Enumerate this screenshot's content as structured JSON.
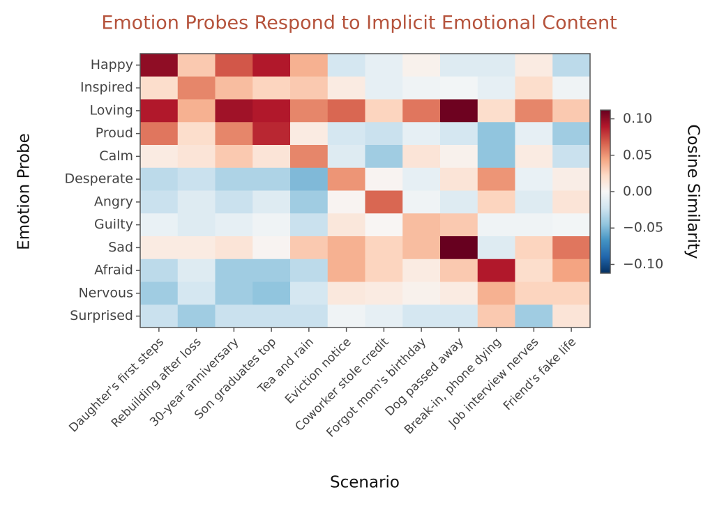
{
  "chart_data": {
    "type": "heatmap",
    "title": "Emotion Probes Respond to Implicit Emotional Content",
    "x_label": "Scenario",
    "y_label": "Emotion Probe",
    "colorbar_label": "Cosine Similarity",
    "colormap": "RdBu_r",
    "x": [
      "Daughter's first steps",
      "Rebuilding after loss",
      "30-year anniversary",
      "Son graduates top",
      "Tea and rain",
      "Eviction notice",
      "Coworker stole credit",
      "Forgot mom's birthday",
      "Dog passed away",
      "Break-in, phone dying",
      "Job interview nerves",
      "Friend's fake life"
    ],
    "y": [
      "Happy",
      "Inspired",
      "Loving",
      "Proud",
      "Calm",
      "Desperate",
      "Angry",
      "Guilty",
      "Sad",
      "Afraid",
      "Nervous",
      "Surprised"
    ],
    "values": [
      [
        0.1,
        0.03,
        0.07,
        0.09,
        0.04,
        -0.02,
        -0.01,
        0.005,
        -0.015,
        -0.015,
        0.01,
        -0.03
      ],
      [
        0.02,
        0.055,
        0.035,
        0.025,
        0.03,
        0.01,
        -0.01,
        -0.005,
        -0.003,
        -0.01,
        0.02,
        -0.005
      ],
      [
        0.09,
        0.04,
        0.095,
        0.09,
        0.055,
        0.065,
        0.025,
        0.06,
        0.11,
        0.02,
        0.055,
        0.03
      ],
      [
        0.06,
        0.02,
        0.055,
        0.085,
        0.01,
        -0.02,
        -0.025,
        -0.01,
        -0.02,
        -0.045,
        -0.01,
        -0.04
      ],
      [
        0.01,
        0.015,
        0.03,
        0.015,
        0.055,
        -0.015,
        -0.04,
        0.015,
        0.005,
        -0.045,
        0.01,
        -0.025
      ],
      [
        -0.03,
        -0.025,
        -0.035,
        -0.035,
        -0.05,
        0.05,
        0.003,
        -0.01,
        0.015,
        0.05,
        -0.008,
        0.008
      ],
      [
        -0.025,
        -0.015,
        -0.025,
        -0.015,
        -0.04,
        0.003,
        0.065,
        -0.005,
        -0.015,
        0.025,
        -0.015,
        0.015
      ],
      [
        -0.008,
        -0.015,
        -0.01,
        -0.005,
        -0.025,
        0.013,
        0.002,
        0.035,
        0.03,
        -0.005,
        -0.005,
        -0.003
      ],
      [
        0.01,
        0.01,
        0.015,
        0.003,
        0.03,
        0.04,
        0.025,
        0.035,
        0.12,
        -0.015,
        0.025,
        0.06
      ],
      [
        -0.03,
        -0.015,
        -0.04,
        -0.04,
        -0.03,
        0.04,
        0.025,
        0.01,
        0.03,
        0.09,
        0.02,
        0.045
      ],
      [
        -0.04,
        -0.02,
        -0.04,
        -0.045,
        -0.02,
        0.012,
        0.01,
        0.005,
        0.01,
        0.04,
        0.025,
        0.025
      ],
      [
        -0.025,
        -0.04,
        -0.025,
        -0.025,
        -0.025,
        -0.005,
        -0.01,
        -0.02,
        -0.02,
        0.03,
        -0.04,
        0.015
      ]
    ],
    "clim": [
      -0.112,
      0.112
    ],
    "cticks": [
      {
        "value": 0.1,
        "label": "0.10"
      },
      {
        "value": 0.05,
        "label": "0.05"
      },
      {
        "value": 0,
        "label": "0.00"
      },
      {
        "value": -0.05,
        "label": "−0.05"
      },
      {
        "value": -0.1,
        "label": "−0.10"
      }
    ]
  }
}
